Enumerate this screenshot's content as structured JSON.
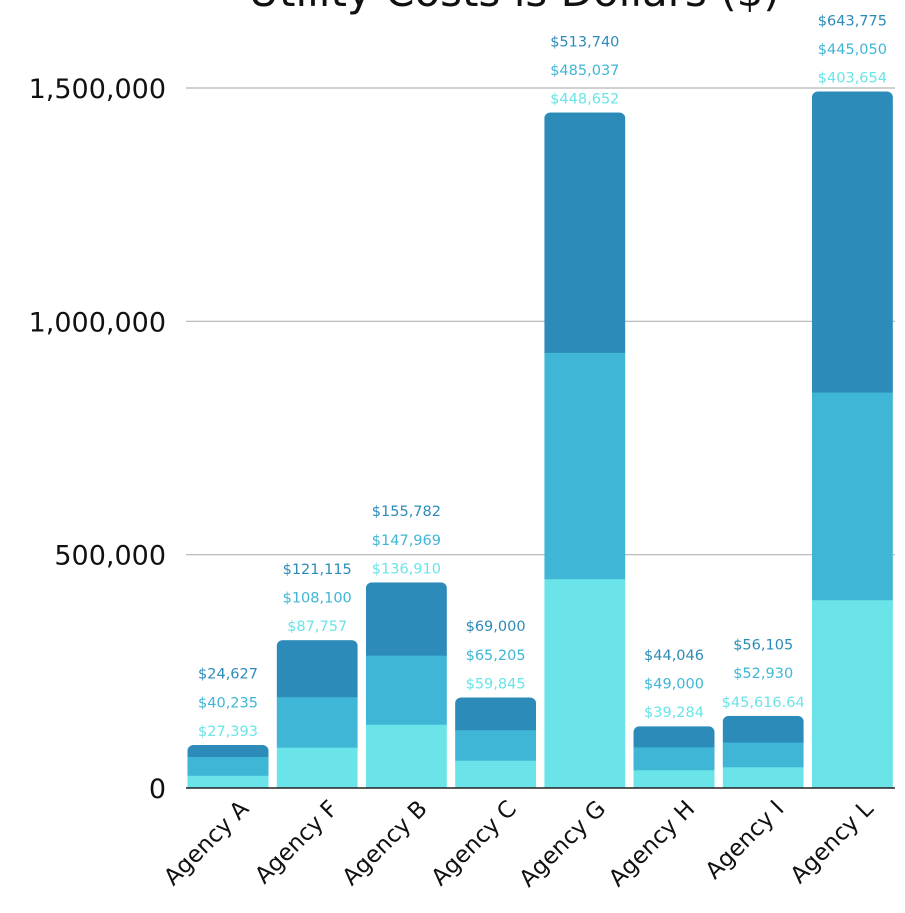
{
  "chart_data": {
    "type": "bar",
    "stacked": true,
    "title": "Utility Costs is Dollars ($)",
    "xlabel": "",
    "ylabel": "",
    "ylim": [
      0,
      1500000
    ],
    "yticks": [
      0,
      500000,
      1000000,
      1500000
    ],
    "ytick_labels": [
      "0",
      "500,000",
      "1,000,000",
      "1,500,000"
    ],
    "grid": true,
    "categories": [
      "Agency A",
      "Agency F",
      "Agency B",
      "Agency C",
      "Agency G",
      "Agency H",
      "Agency I",
      "Agency L"
    ],
    "series": [
      {
        "color": "#6ae4e8",
        "values": [
          27393,
          87757,
          136910,
          59845,
          448652,
          39284,
          45616.64,
          403654
        ],
        "labels": [
          "$27,393",
          "$87,757",
          "$136,910",
          "$59,845",
          "$448,652",
          "$39,284",
          "$45,616.64",
          "$403,654"
        ]
      },
      {
        "color": "#40b6d6",
        "values": [
          40235,
          108100,
          147969,
          65205,
          485037,
          49000,
          52930,
          445050
        ],
        "labels": [
          "$40,235",
          "$108,100",
          "$147,969",
          "$65,205",
          "$485,037",
          "$49,000",
          "$52,930",
          "$445,050"
        ]
      },
      {
        "color": "#2c8bb9",
        "values": [
          24627,
          121115,
          155782,
          69000,
          513740,
          44046,
          56105,
          643775
        ],
        "labels": [
          "$24,627",
          "$121,115",
          "$155,782",
          "$69,000",
          "$513,740",
          "$44,046",
          "$56,105",
          "$643,775"
        ]
      }
    ]
  }
}
